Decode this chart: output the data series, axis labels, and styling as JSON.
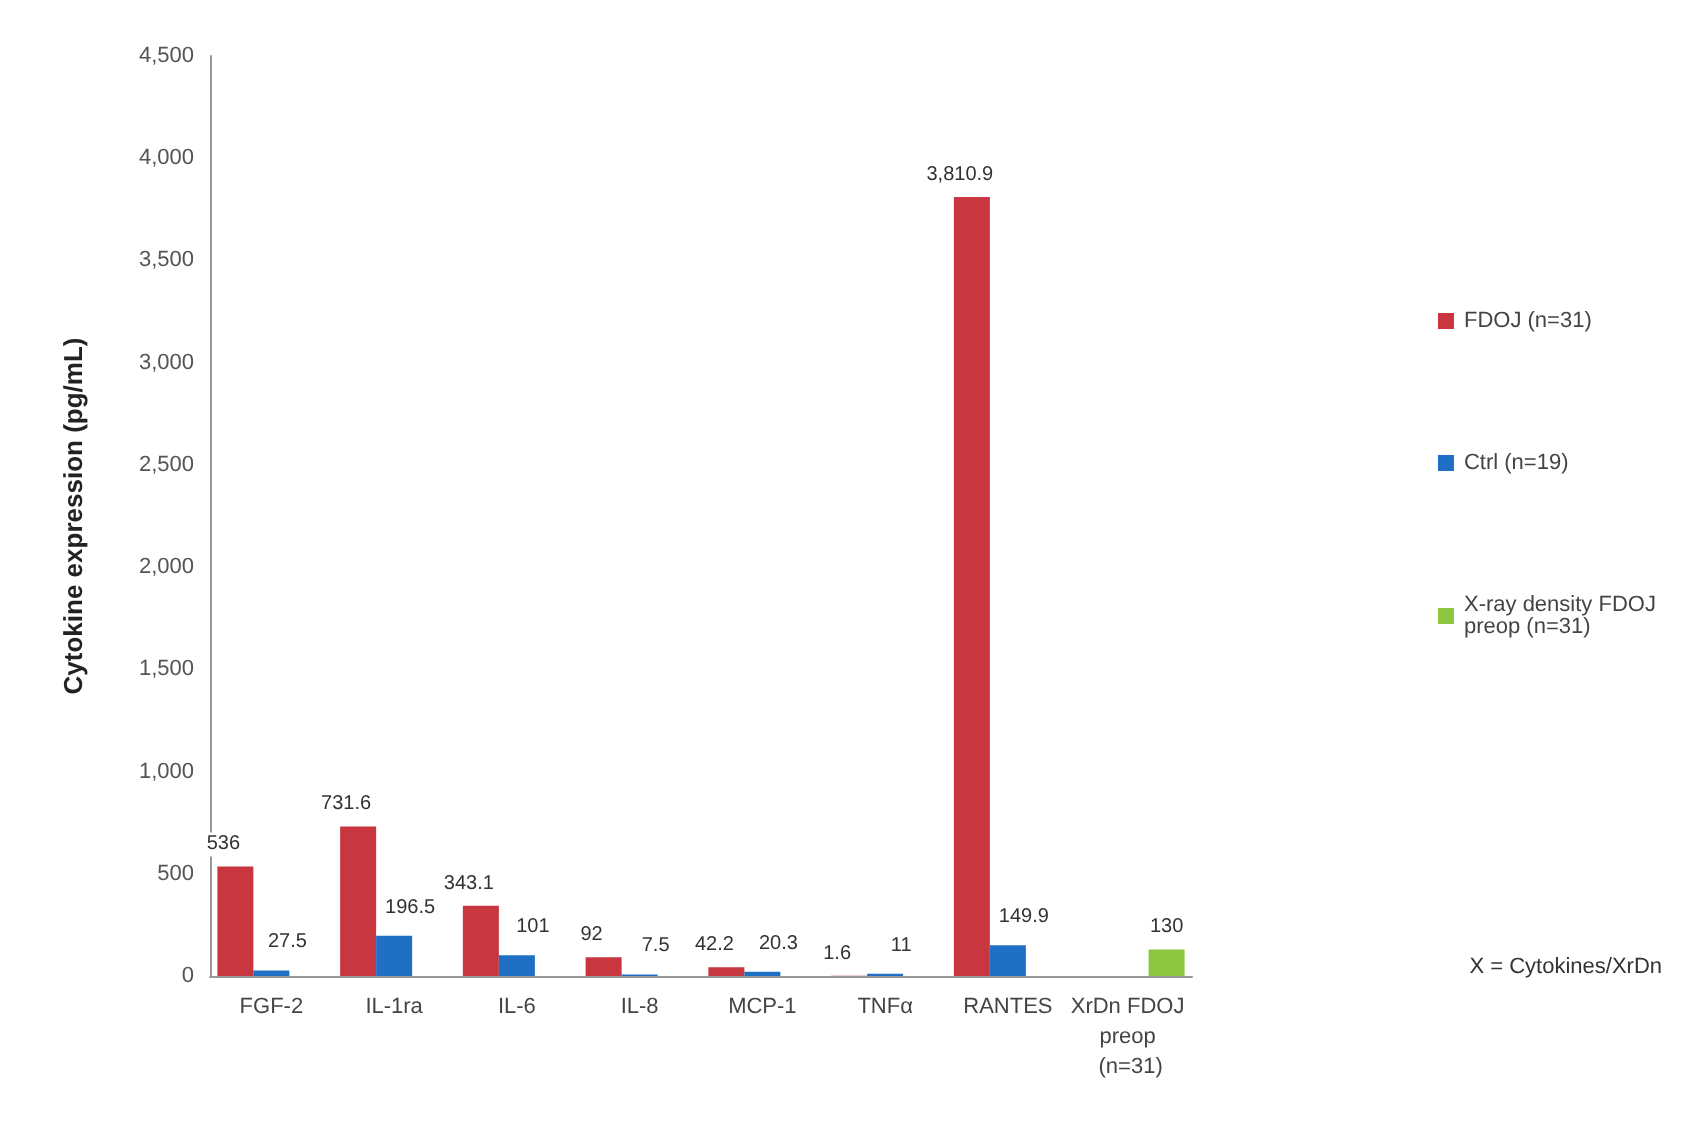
{
  "chart_data": {
    "type": "bar",
    "ylabel": "Cytokine expression (pg/mL)",
    "categories": [
      "FGF-2",
      "IL-1ra",
      "IL-6",
      "IL-8",
      "MCP-1",
      "TNFα",
      "RANTES",
      "XrDn FDOJ preop (n=31)"
    ],
    "series": [
      {
        "name": "FDOJ (n=31)",
        "color": "#c8373f",
        "values": [
          536,
          731.6,
          343.1,
          92,
          42.2,
          1.6,
          3810.9,
          null
        ],
        "value_labels": [
          "536",
          "731.6",
          "343.1",
          "92",
          "42.2",
          "1.6",
          "3,810.9",
          null
        ]
      },
      {
        "name": "Ctrl (n=19)",
        "color": "#1f6fc5",
        "values": [
          27.5,
          196.5,
          101,
          7.5,
          20.3,
          11,
          149.9,
          null
        ],
        "value_labels": [
          "27.5",
          "196.5",
          "101",
          "7.5",
          "20.3",
          "11",
          "149.9",
          null
        ]
      },
      {
        "name": "X-ray density FDOJ preop (n=31)",
        "color": "#8cc63f",
        "values": [
          null,
          null,
          null,
          null,
          null,
          null,
          null,
          130
        ],
        "value_labels": [
          null,
          null,
          null,
          null,
          null,
          null,
          null,
          "130"
        ]
      }
    ],
    "ylim": [
      0,
      4500
    ],
    "yticks": [
      0,
      500,
      {
        "value": 1000,
        "label": "1,000"
      },
      {
        "value": 1500,
        "label": "1,500"
      },
      {
        "value": 2000,
        "label": "2,000"
      },
      {
        "value": 2500,
        "label": "2,500"
      },
      {
        "value": 3000,
        "label": "3,000"
      },
      {
        "value": 3500,
        "label": "3,500"
      },
      {
        "value": 4000,
        "label": "4,000"
      },
      {
        "value": 4500,
        "label": "4,500"
      }
    ],
    "annotations": [
      "X = Cytokines/XrDn"
    ],
    "grid": false,
    "legend": "right"
  }
}
